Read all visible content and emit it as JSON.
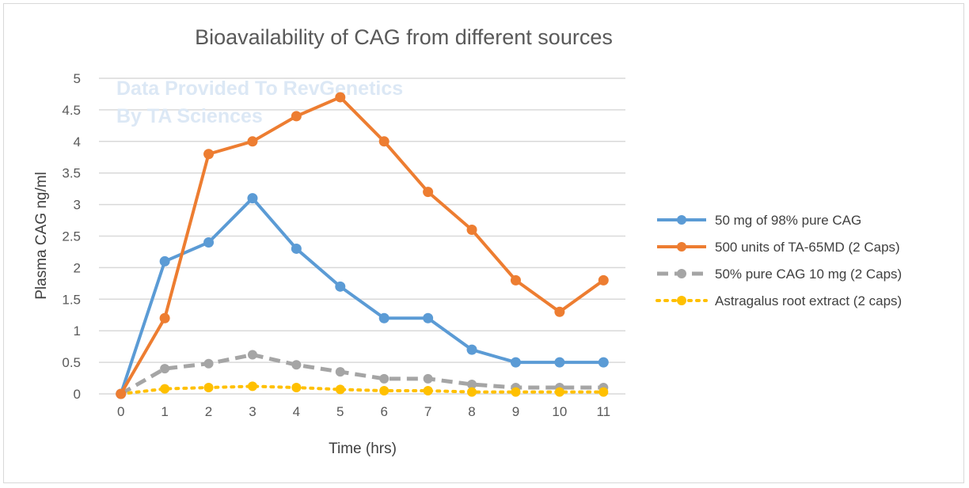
{
  "chart_data": {
    "type": "line",
    "title": "Bioavailability of CAG from different sources",
    "watermark": [
      "Data Provided To RevGenetics",
      "By TA Sciences"
    ],
    "xlabel": "Time (hrs)",
    "ylabel": "Plasma CAG ng/ml",
    "x": [
      0,
      1,
      2,
      3,
      4,
      5,
      6,
      7,
      8,
      9,
      10,
      11
    ],
    "ylim": [
      0,
      5
    ],
    "yticks": [
      "0",
      "0.5",
      "1",
      "1.5",
      "2",
      "2.5",
      "3",
      "3.5",
      "4",
      "4.5",
      "5"
    ],
    "grid": true,
    "legend_position": "right",
    "series": [
      {
        "name": "50 mg of 98% pure CAG",
        "color": "#5b9bd5",
        "style": "solid",
        "values": [
          0,
          2.1,
          2.4,
          3.1,
          2.3,
          1.7,
          1.2,
          1.2,
          0.7,
          0.5,
          0.5,
          0.5
        ]
      },
      {
        "name": "500 units of TA-65MD (2 Caps)",
        "color": "#ed7d31",
        "style": "solid",
        "values": [
          0,
          1.2,
          3.8,
          4.0,
          4.4,
          4.7,
          4.0,
          3.2,
          2.6,
          1.8,
          1.3,
          1.8
        ]
      },
      {
        "name": "50% pure CAG 10 mg (2 Caps)",
        "color": "#a5a5a5",
        "style": "dashed",
        "values": [
          0,
          0.4,
          0.48,
          0.62,
          0.46,
          0.35,
          0.24,
          0.24,
          0.15,
          0.1,
          0.1,
          0.1
        ]
      },
      {
        "name": "Astragalus root extract (2 caps)",
        "color": "#ffc000",
        "style": "dotted",
        "values": [
          0,
          0.08,
          0.1,
          0.12,
          0.1,
          0.07,
          0.05,
          0.05,
          0.03,
          0.03,
          0.03,
          0.03
        ]
      }
    ]
  }
}
